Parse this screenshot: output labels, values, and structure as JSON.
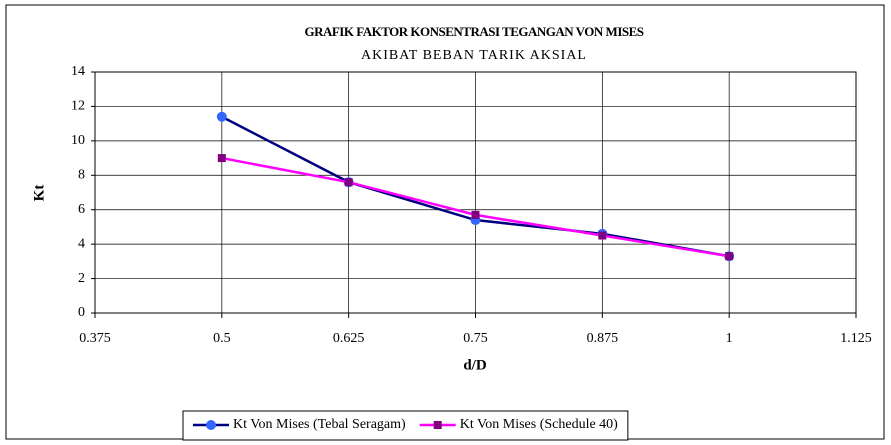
{
  "chart_data": {
    "type": "line",
    "title": "GRAFIK FAKTOR KONSENTRASI TEGANGAN  VON MISES",
    "subtitle": "AKIBAT BEBAN TARIK AKSIAL",
    "x_label": "d/D",
    "y_label": "Kt",
    "x": [
      0.5,
      0.625,
      0.75,
      0.875,
      1
    ],
    "series": [
      {
        "name": "Kt Von Mises (Tebal Seragam)",
        "color": "#000080",
        "marker_color": "#3366ff",
        "marker": "circle",
        "values": [
          11.4,
          7.6,
          5.4,
          4.6,
          3.3
        ]
      },
      {
        "name": "Kt Von Mises (Schedule 40)",
        "color": "#ff00ff",
        "marker_color": "#800080",
        "marker": "square",
        "values": [
          9.0,
          7.6,
          5.7,
          4.5,
          3.3
        ]
      }
    ],
    "xlim": [
      0.375,
      1.125
    ],
    "xticks": [
      0.375,
      0.5,
      0.625,
      0.75,
      0.875,
      1,
      1.125
    ],
    "ylim": [
      0,
      14
    ],
    "yticks": [
      0,
      2,
      4,
      6,
      8,
      10,
      12,
      14
    ],
    "grid": true,
    "legend": "bottom"
  }
}
